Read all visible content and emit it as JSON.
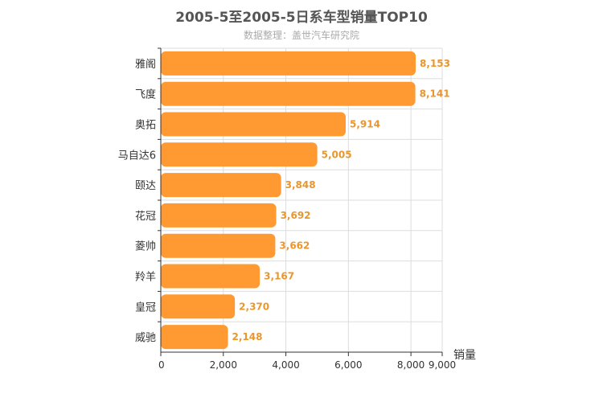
{
  "chart_data": {
    "type": "bar",
    "orientation": "horizontal",
    "title": "2005-5至2005-5日系车型销量TOP10",
    "subtitle": "数据整理：盖世汽车研究院",
    "categories": [
      "雅阁",
      "飞度",
      "奥拓",
      "马自达6",
      "颐达",
      "花冠",
      "菱帅",
      "羚羊",
      "皇冠",
      "威驰"
    ],
    "values": [
      8153,
      8141,
      5914,
      5005,
      3848,
      3692,
      3662,
      3167,
      2370,
      2148
    ],
    "value_labels": [
      "8,153",
      "8,141",
      "5,914",
      "5,005",
      "3,848",
      "3,692",
      "3,662",
      "3,167",
      "2,370",
      "2,148"
    ],
    "xlabel": "销量",
    "ylabel": "",
    "xlim": [
      0,
      9000
    ],
    "xticks": [
      0,
      2000,
      4000,
      6000,
      8000,
      9000
    ],
    "xtick_labels": [
      "0",
      "2,000",
      "4,000",
      "6,000",
      "8,000",
      "9,000"
    ],
    "grid": true,
    "colors": {
      "bar": "#ff9a33",
      "label": "#e8962e",
      "axis": "#333333",
      "grid": "#dddddd"
    }
  }
}
